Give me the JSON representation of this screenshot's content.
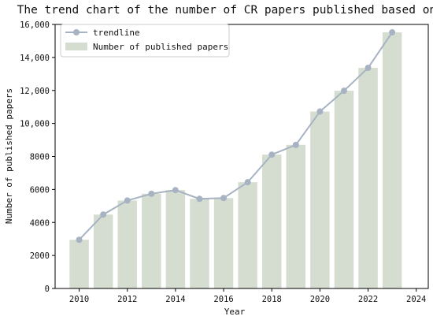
{
  "chart_data": {
    "type": "bar",
    "title": "The trend chart of the number of CR papers published based on VR",
    "xlabel": "Year",
    "ylabel": "Number of published papers",
    "x": [
      2010,
      2011,
      2012,
      2013,
      2014,
      2015,
      2016,
      2017,
      2018,
      2019,
      2020,
      2021,
      2022,
      2023
    ],
    "series": [
      {
        "name": "Number of published papers",
        "type": "bar",
        "values": [
          2950,
          4480,
          5330,
          5740,
          5960,
          5430,
          5480,
          6440,
          8110,
          8700,
          10720,
          11980,
          13370,
          15520
        ]
      },
      {
        "name": "trendline",
        "type": "line",
        "values": [
          2950,
          4480,
          5330,
          5740,
          5960,
          5430,
          5480,
          6440,
          8110,
          8700,
          10720,
          11980,
          13370,
          15520
        ]
      }
    ],
    "xlim": [
      2009,
      2024.5
    ],
    "ylim": [
      0,
      16000
    ],
    "xticks": [
      2010,
      2012,
      2014,
      2016,
      2018,
      2020,
      2022,
      2024
    ],
    "yticks": [
      0,
      2000,
      4000,
      6000,
      8000,
      10000,
      12000,
      14000,
      16000
    ],
    "ytick_labels": [
      "0",
      "2000",
      "4000",
      "6000",
      "8000",
      "10,000",
      "12,000",
      "14,000",
      "16,000"
    ],
    "grid": false,
    "legend": "top-left",
    "colors": {
      "bar": "#d5ddd0",
      "line": "#a7b3c2"
    }
  }
}
